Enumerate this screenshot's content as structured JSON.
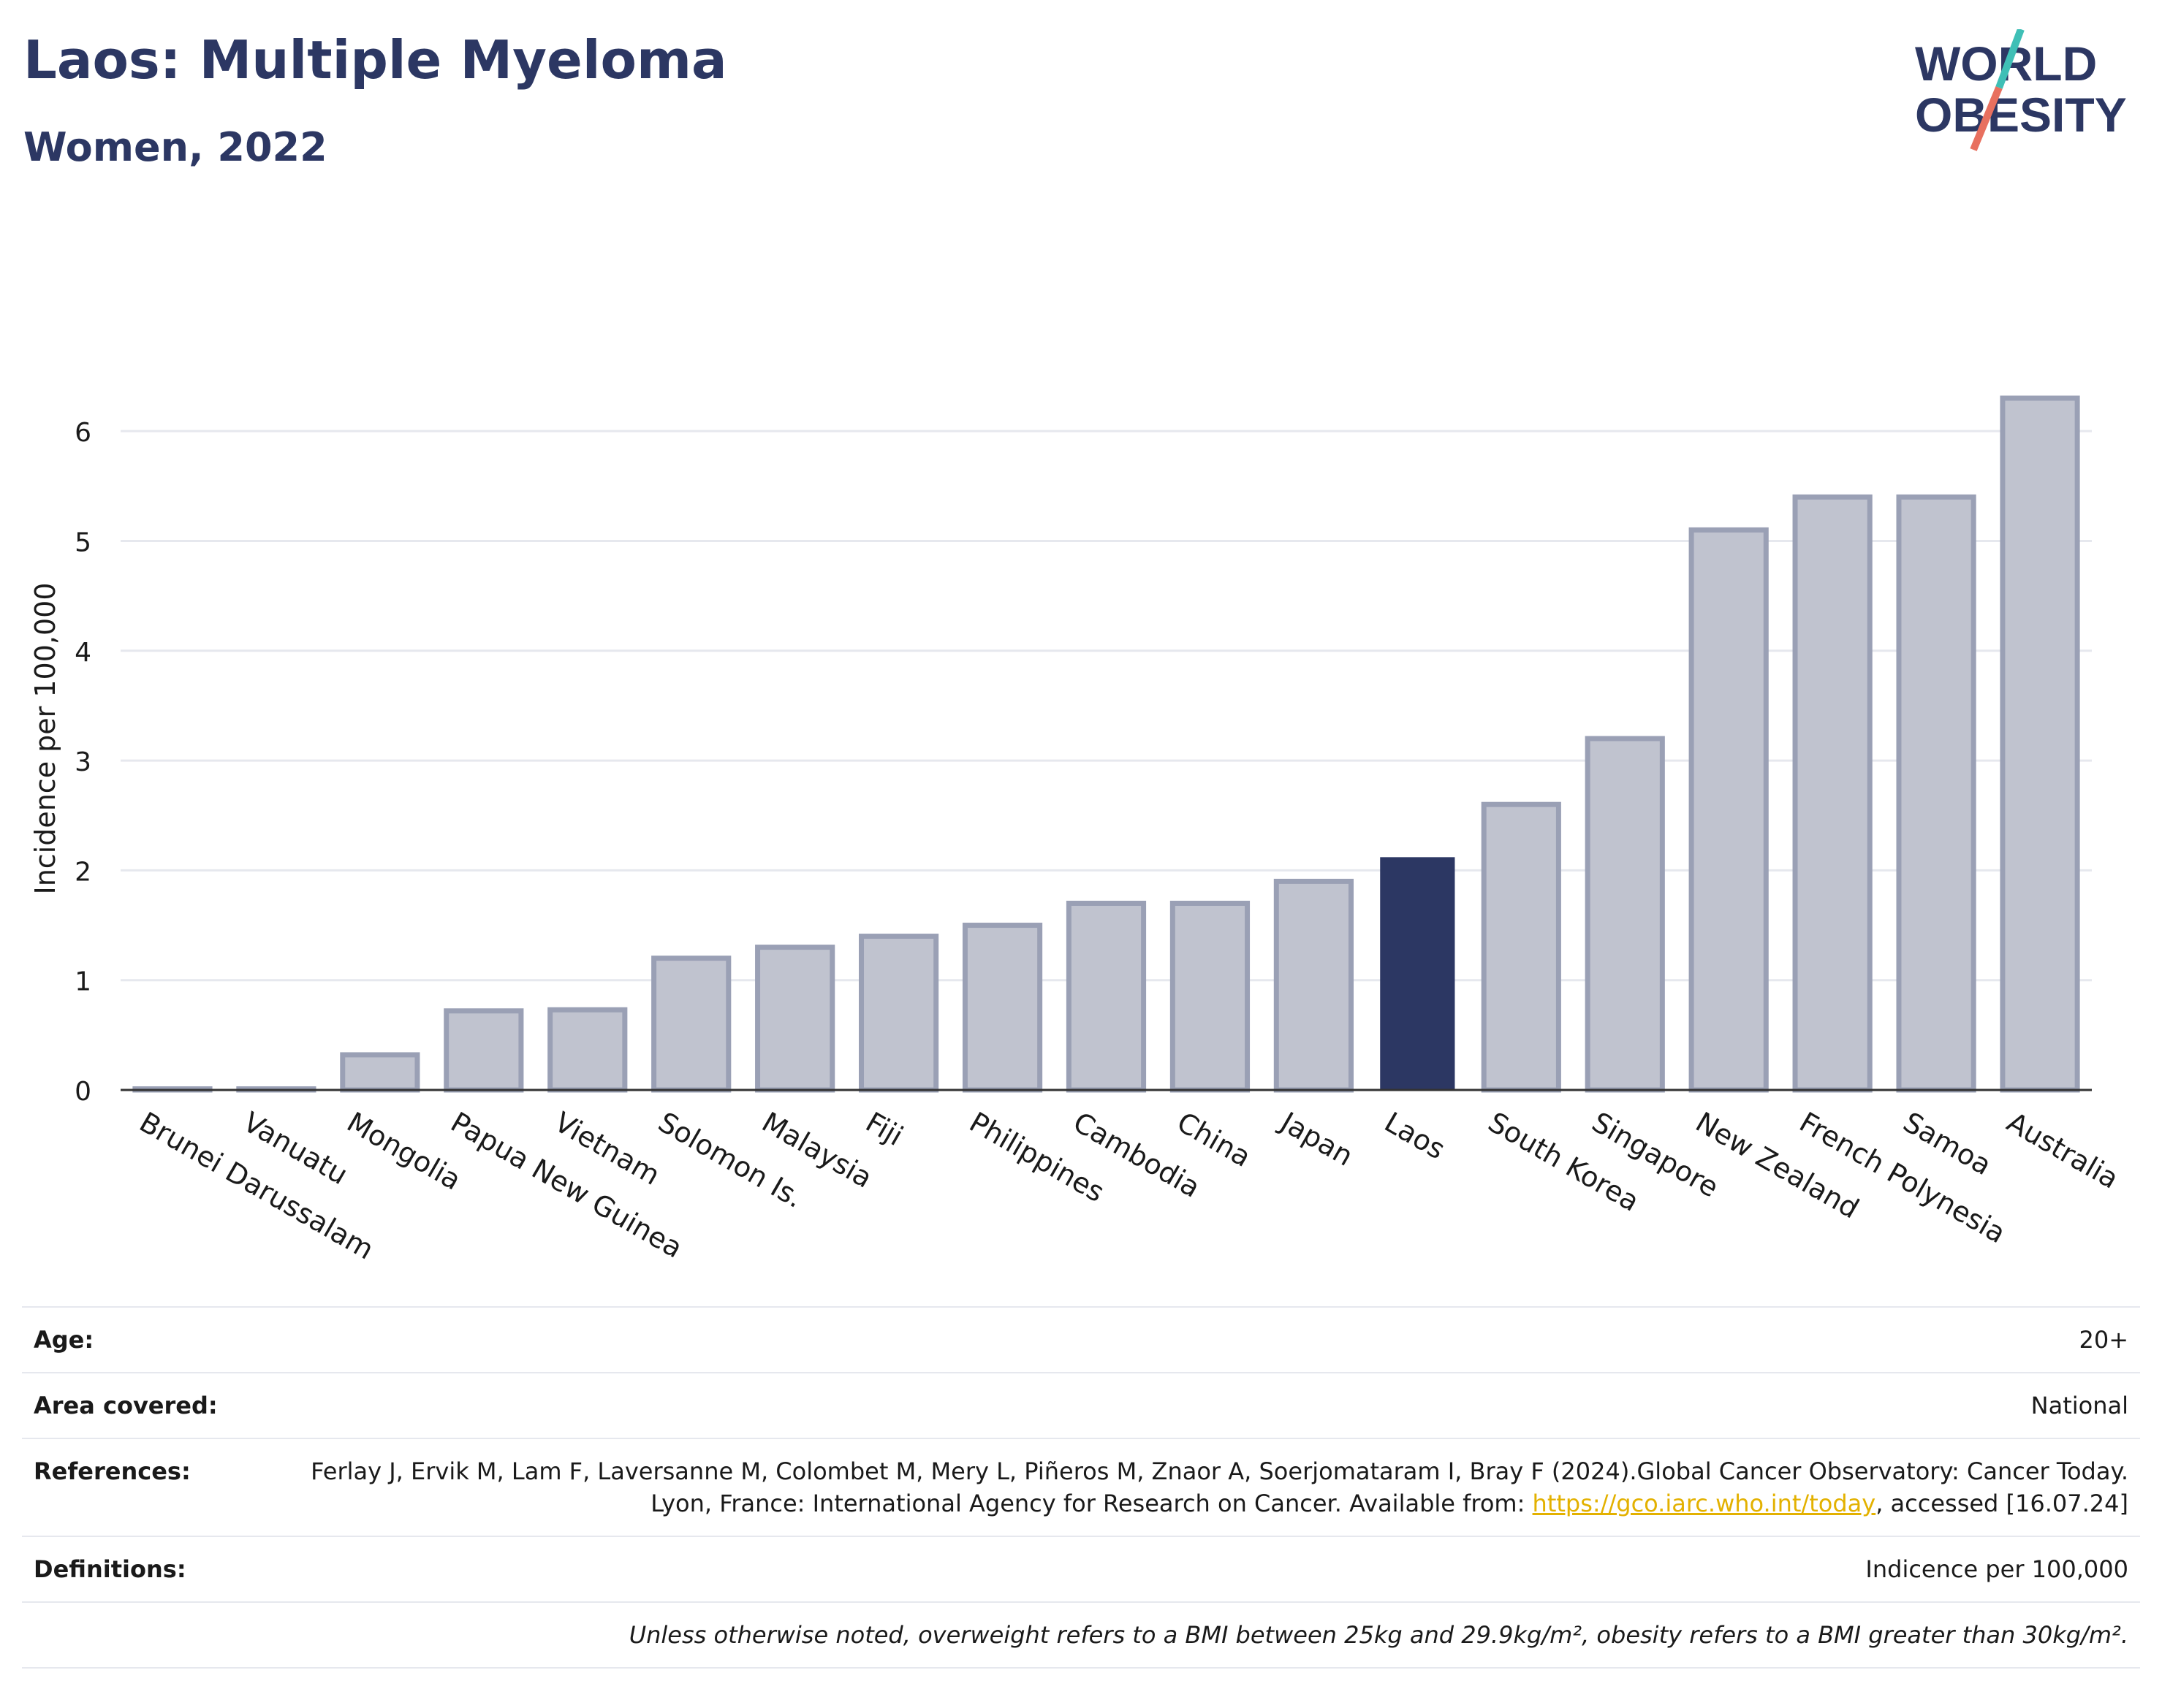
{
  "header": {
    "title": "Laos: Multiple Myeloma",
    "subtitle": "Women, 2022",
    "logo_line1": "WORLD",
    "logo_line2": "OBESITY"
  },
  "colors": {
    "highlight": "#2c3763",
    "bar_fill": "#c0c3cf",
    "bar_stroke": "#9aa0b5",
    "grid": "#e6e8ee",
    "logo_teal": "#3fbfb6",
    "logo_coral": "#e8705f"
  },
  "chart_data": {
    "type": "bar",
    "title": "Laos: Multiple Myeloma",
    "subtitle": "Women, 2022",
    "xlabel": "",
    "ylabel": "Incidence per 100,000",
    "ylim": [
      0,
      6.4
    ],
    "yticks": [
      0,
      1,
      2,
      3,
      4,
      5,
      6
    ],
    "grid": true,
    "highlight": "Laos",
    "categories": [
      "Brunei Darussalam",
      "Vanuatu",
      "Mongolia",
      "Papua New Guinea",
      "Vietnam",
      "Solomon Is.",
      "Malaysia",
      "Fiji",
      "Philippines",
      "Cambodia",
      "China",
      "Japan",
      "Laos",
      "South Korea",
      "Singapore",
      "New Zealand",
      "French Polynesia",
      "Samoa",
      "Australia"
    ],
    "values": [
      0.01,
      0.01,
      0.32,
      0.72,
      0.73,
      1.2,
      1.3,
      1.4,
      1.5,
      1.7,
      1.7,
      1.9,
      2.12,
      2.6,
      3.2,
      5.1,
      5.4,
      5.4,
      6.3
    ]
  },
  "info": {
    "age_label": "Age:",
    "age_value": "20+",
    "area_label": "Area covered:",
    "area_value": "National",
    "refs_label": "References:",
    "refs_text1": "Ferlay J, Ervik M, Lam F, Laversanne M, Colombet M, Mery L, Piñeros M, Znaor A, Soerjomataram I, Bray F (2024).Global Cancer Observatory: Cancer Today. Lyon, France: International Agency for Research on Cancer. Available from: ",
    "refs_link": "https://gco.iarc.who.int/today",
    "refs_text2": ", accessed [16.07.24]",
    "def_label": "Definitions:",
    "def_value": "Indicence per 100,000",
    "note": "Unless otherwise noted, overweight refers to a BMI between 25kg and 29.9kg/m², obesity refers to a BMI greater than 30kg/m²."
  }
}
